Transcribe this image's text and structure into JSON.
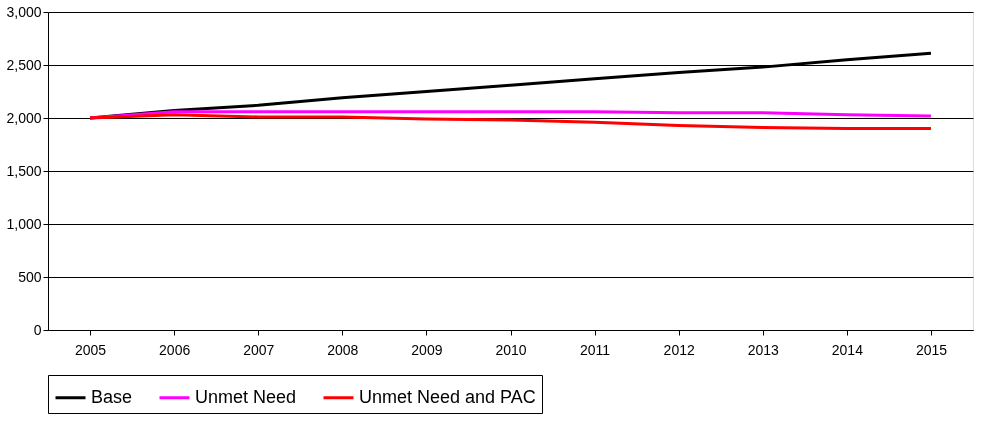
{
  "chart_data": {
    "type": "line",
    "categories": [
      "2005",
      "2006",
      "2007",
      "2008",
      "2009",
      "2010",
      "2011",
      "2012",
      "2013",
      "2014",
      "2015"
    ],
    "series": [
      {
        "name": "Base",
        "color": "#000000",
        "values": [
          2000,
          2070,
          2120,
          2190,
          2250,
          2310,
          2370,
          2430,
          2480,
          2550,
          2610
        ]
      },
      {
        "name": "Unmet Need",
        "color": "#ff00ff",
        "values": [
          2000,
          2060,
          2060,
          2060,
          2060,
          2060,
          2060,
          2050,
          2050,
          2030,
          2020
        ]
      },
      {
        "name": "Unmet Need and PAC",
        "color": "#ff0000",
        "values": [
          2000,
          2030,
          2010,
          2010,
          1990,
          1980,
          1960,
          1930,
          1910,
          1900,
          1900
        ]
      }
    ],
    "ylim": [
      0,
      3000
    ],
    "yticks": [
      {
        "value": 0,
        "label": "0"
      },
      {
        "value": 500,
        "label": "500"
      },
      {
        "value": 1000,
        "label": "1,000"
      },
      {
        "value": 1500,
        "label": "1,500"
      },
      {
        "value": 2000,
        "label": "2,000"
      },
      {
        "value": 2500,
        "label": "2,500"
      },
      {
        "value": 3000,
        "label": "3,000"
      }
    ],
    "grid": "y",
    "legend": "bottom",
    "marker": "none",
    "line_style": "solid"
  }
}
